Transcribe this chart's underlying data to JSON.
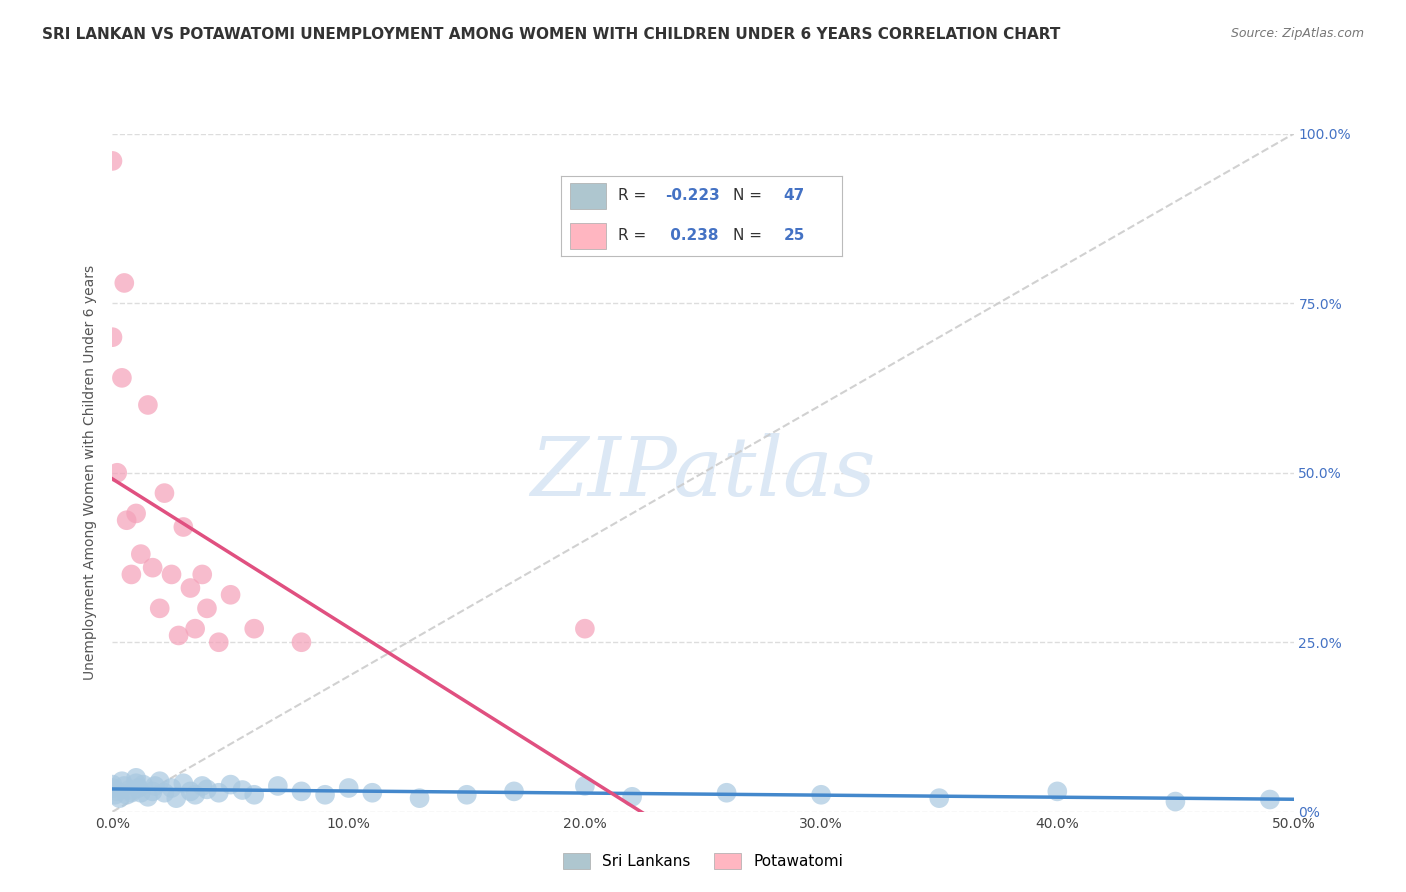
{
  "title": "SRI LANKAN VS POTAWATOMI UNEMPLOYMENT AMONG WOMEN WITH CHILDREN UNDER 6 YEARS CORRELATION CHART",
  "source": "Source: ZipAtlas.com",
  "ylabel": "Unemployment Among Women with Children Under 6 years",
  "xlim": [
    0.0,
    0.5
  ],
  "ylim": [
    0.0,
    1.0
  ],
  "xtick_vals": [
    0.0,
    0.1,
    0.2,
    0.3,
    0.4,
    0.5
  ],
  "xtick_labels": [
    "0.0%",
    "10.0%",
    "20.0%",
    "30.0%",
    "40.0%",
    "50.0%"
  ],
  "ytick_vals": [
    0.0,
    0.25,
    0.5,
    0.75,
    1.0
  ],
  "ytick_right_labels": [
    "0%",
    "25.0%",
    "50.0%",
    "75.0%",
    "100.0%"
  ],
  "R_sri": -0.223,
  "N_sri": 47,
  "R_pot": 0.238,
  "N_pot": 25,
  "sri_color": "#A8C8E0",
  "pot_color": "#F4A0B8",
  "sri_line_color": "#4488CC",
  "pot_line_color": "#E05080",
  "diag_color": "#CCCCCC",
  "grid_color": "#DDDDDD",
  "bg_color": "#FFFFFF",
  "right_tick_color": "#4472C4",
  "watermark_color": "#DCE8F5",
  "sri_x": [
    0.0,
    0.0,
    0.001,
    0.002,
    0.003,
    0.004,
    0.005,
    0.006,
    0.007,
    0.008,
    0.01,
    0.01,
    0.011,
    0.012,
    0.013,
    0.015,
    0.017,
    0.018,
    0.02,
    0.022,
    0.025,
    0.027,
    0.03,
    0.033,
    0.035,
    0.038,
    0.04,
    0.045,
    0.05,
    0.055,
    0.06,
    0.07,
    0.08,
    0.09,
    0.1,
    0.11,
    0.13,
    0.15,
    0.17,
    0.2,
    0.22,
    0.26,
    0.3,
    0.35,
    0.4,
    0.45,
    0.49
  ],
  "sri_y": [
    0.04,
    0.035,
    0.025,
    0.03,
    0.02,
    0.045,
    0.038,
    0.025,
    0.032,
    0.028,
    0.05,
    0.042,
    0.035,
    0.028,
    0.04,
    0.022,
    0.03,
    0.038,
    0.045,
    0.028,
    0.035,
    0.02,
    0.042,
    0.03,
    0.025,
    0.038,
    0.033,
    0.028,
    0.04,
    0.032,
    0.025,
    0.038,
    0.03,
    0.025,
    0.035,
    0.028,
    0.02,
    0.025,
    0.03,
    0.038,
    0.022,
    0.028,
    0.025,
    0.02,
    0.03,
    0.015,
    0.018
  ],
  "pot_x": [
    0.0,
    0.0,
    0.002,
    0.004,
    0.005,
    0.006,
    0.008,
    0.01,
    0.012,
    0.015,
    0.017,
    0.02,
    0.022,
    0.025,
    0.028,
    0.03,
    0.033,
    0.035,
    0.038,
    0.04,
    0.045,
    0.05,
    0.06,
    0.08,
    0.2
  ],
  "pot_y": [
    0.96,
    0.7,
    0.5,
    0.64,
    0.78,
    0.43,
    0.35,
    0.44,
    0.38,
    0.6,
    0.36,
    0.3,
    0.47,
    0.35,
    0.26,
    0.42,
    0.33,
    0.27,
    0.35,
    0.3,
    0.25,
    0.32,
    0.27,
    0.25,
    0.27
  ]
}
